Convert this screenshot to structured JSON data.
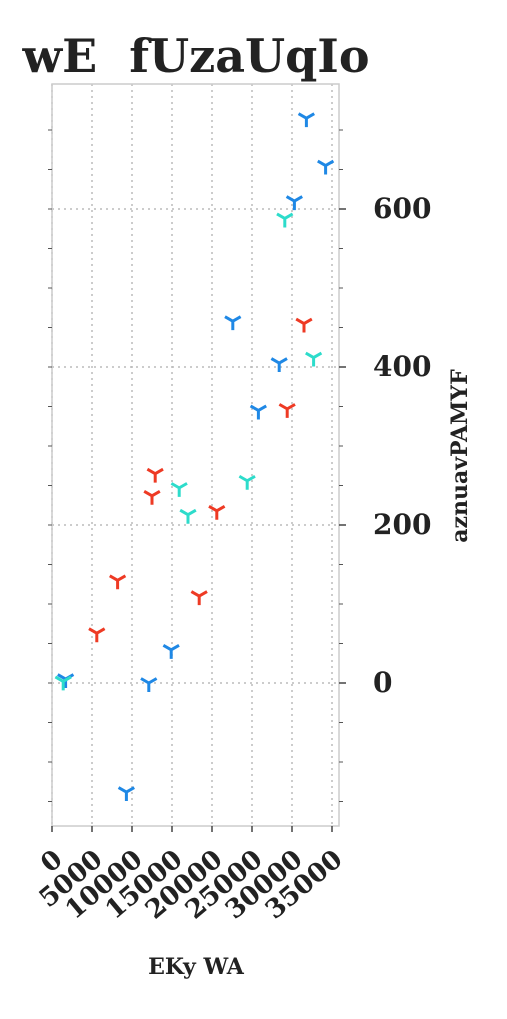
{
  "chart_data": {
    "type": "scatter",
    "title": "wE  fUzaUqIo",
    "xlabel": "EKy WA",
    "ylabel": "aznuavPAMYF",
    "xlim": [
      0,
      35000
    ],
    "ylim": [
      -180,
      750
    ],
    "x_ticks": [
      0,
      5000,
      10000,
      15000,
      20000,
      25000,
      30000,
      35000
    ],
    "x_tick_labels": [
      "0",
      "5000",
      "10000",
      "15000",
      "20000",
      "25000",
      "30000",
      "35000"
    ],
    "y_ticks": [
      0,
      200,
      400,
      600
    ],
    "y_tick_labels": [
      "0",
      "200",
      "400",
      "600"
    ],
    "y_axis_position": "right",
    "grid": true,
    "marker": "tri_down",
    "series": [
      {
        "color": "#1f88e5",
        "points": [
          [
            31800,
            715
          ],
          [
            34200,
            655
          ],
          [
            30300,
            610
          ],
          [
            22600,
            458
          ],
          [
            28400,
            405
          ],
          [
            25800,
            345
          ],
          [
            14900,
            42
          ],
          [
            12100,
            0
          ],
          [
            1700,
            5
          ],
          [
            9300,
            -138
          ]
        ]
      },
      {
        "color": "#ee3a24",
        "points": [
          [
            31500,
            455
          ],
          [
            29400,
            347
          ],
          [
            12900,
            265
          ],
          [
            12500,
            237
          ],
          [
            20600,
            218
          ],
          [
            8200,
            130
          ],
          [
            18400,
            110
          ],
          [
            5600,
            63
          ]
        ]
      },
      {
        "color": "#2ddccb",
        "points": [
          [
            29100,
            588
          ],
          [
            32700,
            412
          ],
          [
            15900,
            247
          ],
          [
            24400,
            256
          ],
          [
            17000,
            213
          ],
          [
            1400,
            2
          ]
        ]
      }
    ]
  }
}
